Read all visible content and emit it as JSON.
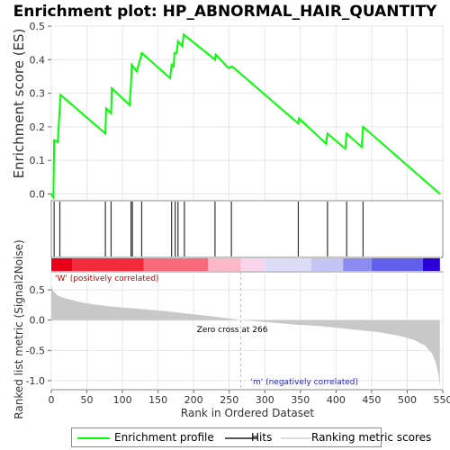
{
  "chart_data": {
    "type": "line",
    "title": "Enrichment plot: HP_ABNORMAL_HAIR_QUANTITY",
    "es_panel": {
      "ylabel": "Enrichment score (ES)",
      "ylim": [
        -0.02,
        0.5
      ],
      "yticks": [
        "0.0",
        "0.1",
        "0.2",
        "0.3",
        "0.4",
        "0.5"
      ],
      "ytick_values": [
        0.0,
        0.1,
        0.2,
        0.3,
        0.4,
        0.5
      ],
      "series": [
        {
          "name": "Enrichment profile",
          "color": "#00ff00",
          "x": [
            0,
            3,
            4,
            9,
            13,
            76,
            77,
            84,
            85,
            110,
            112,
            113,
            120,
            126,
            127,
            167,
            169,
            172,
            173,
            176,
            178,
            184,
            186,
            230,
            231,
            249,
            254,
            347,
            348,
            386,
            388,
            413,
            415,
            436,
            438,
            546
          ],
          "y": [
            0.0,
            -0.01,
            0.16,
            0.155,
            0.295,
            0.18,
            0.255,
            0.24,
            0.315,
            0.265,
            0.33,
            0.385,
            0.365,
            0.41,
            0.42,
            0.345,
            0.385,
            0.38,
            0.42,
            0.42,
            0.455,
            0.44,
            0.475,
            0.4,
            0.415,
            0.375,
            0.38,
            0.21,
            0.225,
            0.15,
            0.18,
            0.135,
            0.18,
            0.14,
            0.2,
            0.0
          ]
        }
      ]
    },
    "hits": [
      4,
      12,
      76,
      84,
      112,
      114,
      127,
      169,
      174,
      178,
      187,
      230,
      253,
      347,
      388,
      415,
      438
    ],
    "metric_panel": {
      "ylabel": "Ranked list metric (Signal2Noise)",
      "ylim": [
        -1.15,
        0.8
      ],
      "yticks": [
        "0.5",
        "0.0",
        "-0.5",
        "-1.0"
      ],
      "ytick_values": [
        0.5,
        0.0,
        -0.5,
        -1.0
      ],
      "zero_cross_rank": 266,
      "zero_cross_label": "Zero cross at 266",
      "pos_label": "'W' (positively correlated)",
      "neg_label": "'m' (negatively correlated)",
      "curve_x": [
        0,
        2,
        5,
        10,
        20,
        40,
        60,
        80,
        100,
        130,
        160,
        190,
        220,
        250,
        266,
        300,
        340,
        380,
        420,
        460,
        490,
        510,
        525,
        535,
        540,
        544,
        546
      ],
      "curve_y": [
        0.58,
        0.5,
        0.45,
        0.4,
        0.36,
        0.3,
        0.26,
        0.23,
        0.21,
        0.18,
        0.15,
        0.11,
        0.07,
        0.03,
        0.0,
        -0.03,
        -0.07,
        -0.1,
        -0.15,
        -0.2,
        -0.26,
        -0.33,
        -0.42,
        -0.55,
        -0.7,
        -0.9,
        -1.1
      ]
    },
    "xaxis": {
      "xlabel": "Rank in Ordered Dataset",
      "xlim": [
        0,
        550
      ],
      "xticks": [
        "0",
        "50",
        "100",
        "150",
        "200",
        "250",
        "300",
        "350",
        "400",
        "450",
        "500",
        "550"
      ],
      "xtick_values": [
        0,
        50,
        100,
        150,
        200,
        250,
        300,
        350,
        400,
        450,
        500,
        550
      ]
    },
    "legend": {
      "placement": "bottom",
      "items": [
        {
          "name": "Enrichment profile",
          "color": "#00ff00"
        },
        {
          "name": "Hits",
          "color": "#555555"
        },
        {
          "name": "Ranking metric scores",
          "color": "#cccccc"
        }
      ]
    },
    "heatbar_colors": [
      {
        "from": 0,
        "to": 30,
        "color": "#e8001a"
      },
      {
        "from": 30,
        "to": 130,
        "color": "#f22a3c"
      },
      {
        "from": 130,
        "to": 220,
        "color": "#f86a7a"
      },
      {
        "from": 220,
        "to": 266,
        "color": "#fbb8c8"
      },
      {
        "from": 266,
        "to": 300,
        "color": "#fad4ea"
      },
      {
        "from": 300,
        "to": 365,
        "color": "#dcdcf8"
      },
      {
        "from": 365,
        "to": 410,
        "color": "#c4c4f4"
      },
      {
        "from": 410,
        "to": 450,
        "color": "#8a8af0"
      },
      {
        "from": 450,
        "to": 522,
        "color": "#6060ec"
      },
      {
        "from": 522,
        "to": 546,
        "color": "#2a00d8"
      }
    ]
  }
}
